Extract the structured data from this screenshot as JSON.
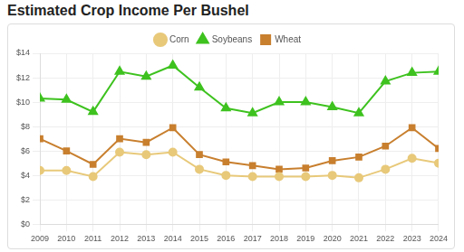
{
  "chart_data": {
    "type": "line",
    "title": "Estimated Crop Income Per Bushel",
    "categories": [
      "2009",
      "2010",
      "2011",
      "2012",
      "2013",
      "2014",
      "2015",
      "2016",
      "2017",
      "2018",
      "2019",
      "2020",
      "2021",
      "2022",
      "2023",
      "2024"
    ],
    "series": [
      {
        "name": "Corn",
        "color": "#e8c97a",
        "marker": "circle",
        "values": [
          4.4,
          4.4,
          3.9,
          5.9,
          5.7,
          5.9,
          4.5,
          4.0,
          3.9,
          3.9,
          3.9,
          4.0,
          3.8,
          4.5,
          5.4,
          5.0
        ]
      },
      {
        "name": "Soybeans",
        "color": "#3ec21f",
        "marker": "triangle",
        "values": [
          10.3,
          10.2,
          9.2,
          12.5,
          12.1,
          13.0,
          11.2,
          9.5,
          9.1,
          10.0,
          10.0,
          9.6,
          9.1,
          11.7,
          12.4,
          12.5
        ]
      },
      {
        "name": "Wheat",
        "color": "#c87f2e",
        "marker": "square",
        "values": [
          7.0,
          6.0,
          4.9,
          7.0,
          6.7,
          7.9,
          5.7,
          5.1,
          4.8,
          4.5,
          4.6,
          5.2,
          5.5,
          6.4,
          7.9,
          6.2
        ]
      }
    ],
    "ylim": [
      0,
      14
    ],
    "yticks": [
      {
        "value": 0,
        "label": "$0"
      },
      {
        "value": 2,
        "label": "$2"
      },
      {
        "value": 4,
        "label": "$4"
      },
      {
        "value": 6,
        "label": "$6"
      },
      {
        "value": 8,
        "label": "$8"
      },
      {
        "value": 10,
        "label": "$10"
      },
      {
        "value": 12,
        "label": "$12"
      },
      {
        "value": 14,
        "label": "$14"
      }
    ],
    "grid": true,
    "legend": "top"
  }
}
